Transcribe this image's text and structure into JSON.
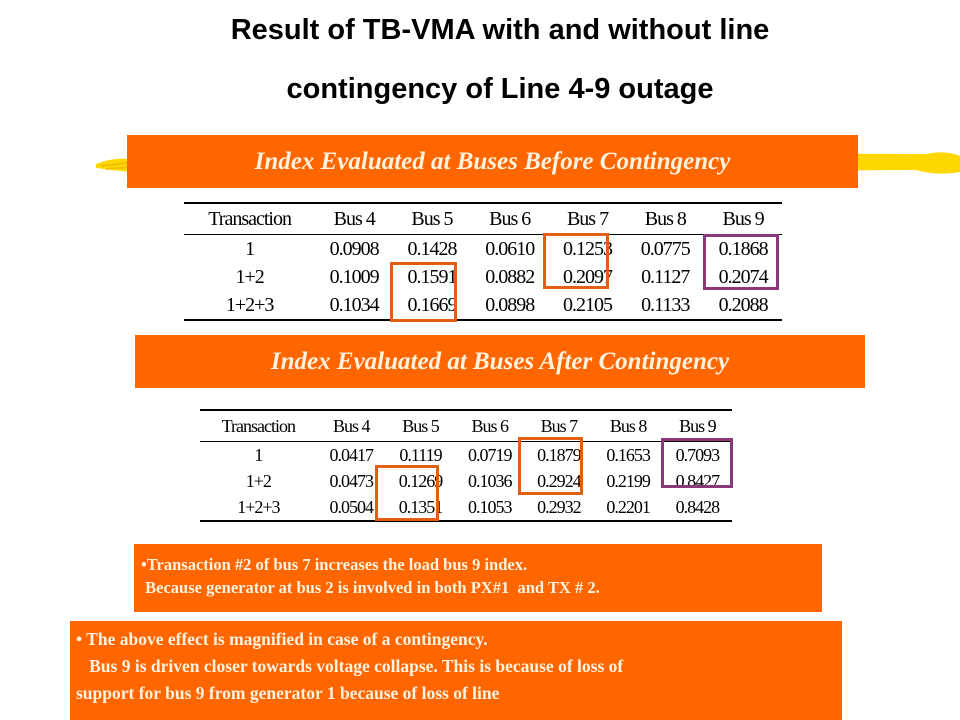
{
  "title": {
    "line1": "Result of TB-VMA with and without line",
    "line2": "contingency of  Line 4-9 outage"
  },
  "before": {
    "banner": "Index Evaluated at Buses Before Contingency",
    "headers": [
      "Transaction",
      "Bus 4",
      "Bus 5",
      "Bus 6",
      "Bus 7",
      "Bus 8",
      "Bus 9"
    ],
    "rows": [
      [
        "1",
        "0.0908",
        "0.1428",
        "0.0610",
        "0.1253",
        "0.0775",
        "0.1868"
      ],
      [
        "1+2",
        "0.1009",
        "0.1591",
        "0.0882",
        "0.2097",
        "0.1127",
        "0.2074"
      ],
      [
        "1+2+3",
        "0.1034",
        "0.1669",
        "0.0898",
        "0.2105",
        "0.1133",
        "0.2088"
      ]
    ]
  },
  "after": {
    "banner": "Index Evaluated at Buses After Contingency",
    "headers": [
      "Transaction",
      "Bus 4",
      "Bus 5",
      "Bus 6",
      "Bus 7",
      "Bus 8",
      "Bus 9"
    ],
    "rows": [
      [
        "1",
        "0.0417",
        "0.1119",
        "0.0719",
        "0.1879",
        "0.1653",
        "0.7093"
      ],
      [
        "1+2",
        "0.0473",
        "0.1269",
        "0.1036",
        "0.2924",
        "0.2199",
        "0.8427"
      ],
      [
        "1+2+3",
        "0.0504",
        "0.1351",
        "0.1053",
        "0.2932",
        "0.2201",
        "0.8428"
      ]
    ]
  },
  "notes": {
    "note1": {
      "line1": "•Transaction #2 of bus 7 increases the load bus 9 index.",
      "line2": " Because generator at bus 2 is involved in both PX#1  and TX # 2."
    },
    "note2": {
      "line1": "•  The above effect is magnified in case of a contingency.",
      "line2": "   Bus 9 is driven closer towards voltage collapse. This is because of loss of",
      "line3": "support for bus 9 from generator 1 because of loss of line"
    }
  },
  "colors": {
    "banner": "#ff6600",
    "highlight_orange": "#e06010",
    "highlight_purple": "#8a3a7a"
  }
}
